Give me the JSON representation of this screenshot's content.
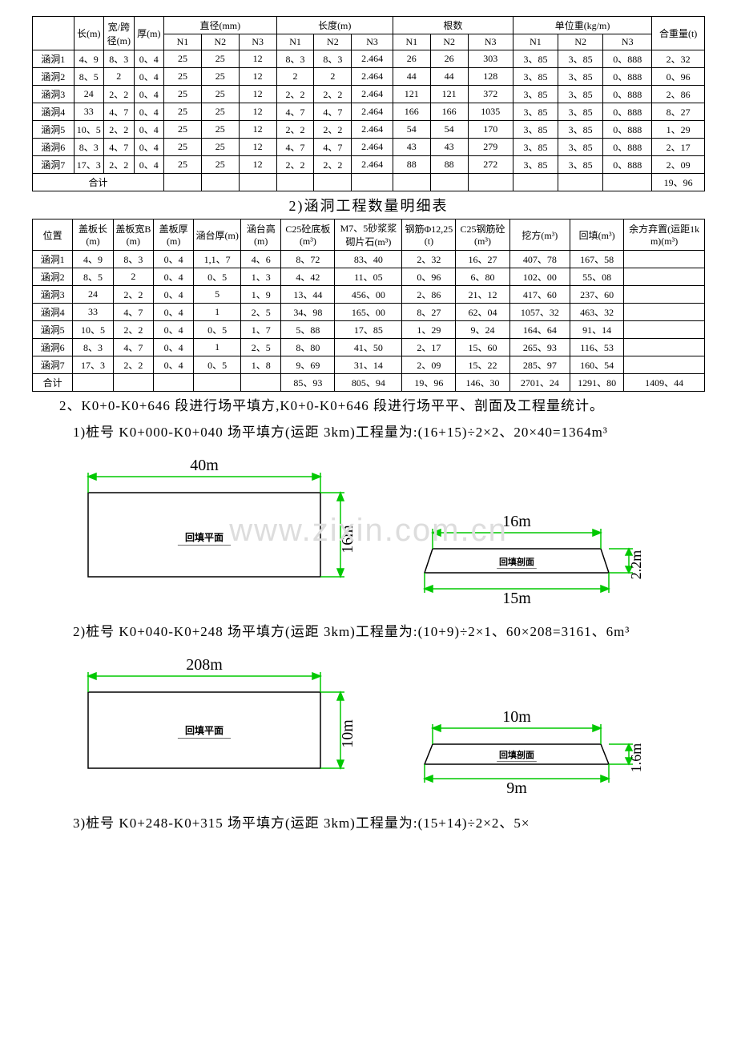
{
  "table1": {
    "headers": {
      "len": "长(m)",
      "width": "宽/跨径(m)",
      "thick": "厚(m)",
      "dia": "直径(mm)",
      "length": "长度(m)",
      "count": "根数",
      "unitw": "单位重(kg/m)",
      "total": "合重量(t)",
      "n1": "N1",
      "n2": "N2",
      "n3": "N3"
    },
    "rows": [
      {
        "name": "涵洞1",
        "l": "4、9",
        "w": "8、3",
        "t": "0、4",
        "d1": "25",
        "d2": "25",
        "d3": "12",
        "L1": "8、3",
        "L2": "8、3",
        "L3": "2.464",
        "c1": "26",
        "c2": "26",
        "c3": "303",
        "u1": "3、85",
        "u2": "3、85",
        "u3": "0、888",
        "sum": "2、32"
      },
      {
        "name": "涵洞2",
        "l": "8、5",
        "w": "2",
        "t": "0、4",
        "d1": "25",
        "d2": "25",
        "d3": "12",
        "L1": "2",
        "L2": "2",
        "L3": "2.464",
        "c1": "44",
        "c2": "44",
        "c3": "128",
        "u1": "3、85",
        "u2": "3、85",
        "u3": "0、888",
        "sum": "0、96"
      },
      {
        "name": "涵洞3",
        "l": "24",
        "w": "2、2",
        "t": "0、4",
        "d1": "25",
        "d2": "25",
        "d3": "12",
        "L1": "2、2",
        "L2": "2、2",
        "L3": "2.464",
        "c1": "121",
        "c2": "121",
        "c3": "372",
        "u1": "3、85",
        "u2": "3、85",
        "u3": "0、888",
        "sum": "2、86"
      },
      {
        "name": "涵洞4",
        "l": "33",
        "w": "4、7",
        "t": "0、4",
        "d1": "25",
        "d2": "25",
        "d3": "12",
        "L1": "4、7",
        "L2": "4、7",
        "L3": "2.464",
        "c1": "166",
        "c2": "166",
        "c3": "1035",
        "u1": "3、85",
        "u2": "3、85",
        "u3": "0、888",
        "sum": "8、27"
      },
      {
        "name": "涵洞5",
        "l": "10、5",
        "w": "2、2",
        "t": "0、4",
        "d1": "25",
        "d2": "25",
        "d3": "12",
        "L1": "2、2",
        "L2": "2、2",
        "L3": "2.464",
        "c1": "54",
        "c2": "54",
        "c3": "170",
        "u1": "3、85",
        "u2": "3、85",
        "u3": "0、888",
        "sum": "1、29"
      },
      {
        "name": "涵洞6",
        "l": "8、3",
        "w": "4、7",
        "t": "0、4",
        "d1": "25",
        "d2": "25",
        "d3": "12",
        "L1": "4、7",
        "L2": "4、7",
        "L3": "2.464",
        "c1": "43",
        "c2": "43",
        "c3": "279",
        "u1": "3、85",
        "u2": "3、85",
        "u3": "0、888",
        "sum": "2、17"
      },
      {
        "name": "涵洞7",
        "l": "17、3",
        "w": "2、2",
        "t": "0、4",
        "d1": "25",
        "d2": "25",
        "d3": "12",
        "L1": "2、2",
        "L2": "2、2",
        "L3": "2.464",
        "c1": "88",
        "c2": "88",
        "c3": "272",
        "u1": "3、85",
        "u2": "3、85",
        "u3": "0、888",
        "sum": "2、09"
      }
    ],
    "footer": {
      "label": "合计",
      "sum": "19、96"
    }
  },
  "title2": "2)涵洞工程数量明细表",
  "table2": {
    "headers": [
      "位置",
      "盖板长(m)",
      "盖板宽B(m)",
      "盖板厚(m)",
      "涵台厚(m)",
      "涵台高(m)",
      "C25砼底板(m³)",
      "M7、5砂浆浆砌片石(m³)",
      "钢筋Φ12,25(t)",
      "C25钢筋砼(m³)",
      "挖方(m³)",
      "回填(m³)",
      "余方弃置(运距1km)(m³)"
    ],
    "rows": [
      [
        "涵洞1",
        "4、9",
        "8、3",
        "0、4",
        "1,1、7",
        "4、6",
        "8、72",
        "83、40",
        "2、32",
        "16、27",
        "407、78",
        "167、58",
        ""
      ],
      [
        "涵洞2",
        "8、5",
        "2",
        "0、4",
        "0、5",
        "1、3",
        "4、42",
        "11、05",
        "0、96",
        "6、80",
        "102、00",
        "55、08",
        ""
      ],
      [
        "涵洞3",
        "24",
        "2、2",
        "0、4",
        "5",
        "1、9",
        "13、44",
        "456、00",
        "2、86",
        "21、12",
        "417、60",
        "237、60",
        ""
      ],
      [
        "涵洞4",
        "33",
        "4、7",
        "0、4",
        "1",
        "2、5",
        "34、98",
        "165、00",
        "8、27",
        "62、04",
        "1057、32",
        "463、32",
        ""
      ],
      [
        "涵洞5",
        "10、5",
        "2、2",
        "0、4",
        "0、5",
        "1、7",
        "5、88",
        "17、85",
        "1、29",
        "9、24",
        "164、64",
        "91、14",
        ""
      ],
      [
        "涵洞6",
        "8、3",
        "4、7",
        "0、4",
        "1",
        "2、5",
        "8、80",
        "41、50",
        "2、17",
        "15、60",
        "265、93",
        "116、53",
        ""
      ],
      [
        "涵洞7",
        "17、3",
        "2、2",
        "0、4",
        "0、5",
        "1、8",
        "9、69",
        "31、14",
        "2、09",
        "15、22",
        "285、97",
        "160、54",
        ""
      ],
      [
        "合计",
        "",
        "",
        "",
        "",
        "",
        "85、93",
        "805、94",
        "19、96",
        "146、30",
        "2701、24",
        "1291、80",
        "1409、44"
      ]
    ]
  },
  "paras": {
    "p1": "2、K0+0-K0+646 段进行场平填方,K0+0-K0+646 段进行场平平、剖面及工程量统计。",
    "p2": "1)桩号 K0+000-K0+040 场平填方(运距 3km)工程量为:(16+15)÷2×2、20×40=1364m³",
    "p3": "2)桩号 K0+040-K0+248 场平填方(运距 3km)工程量为:(10+9)÷2×1、60×208=3161、6m³",
    "p4": "3)桩号 K0+248-K0+315 场平填方(运距 3km)工程量为:(15+14)÷2×2、5×"
  },
  "diagrams": {
    "colors": {
      "dim": "#00c800",
      "line": "#000",
      "fill": "none",
      "text": "#000"
    },
    "d1": {
      "plan": {
        "w": "40m",
        "h": "16m",
        "label": "回填平面"
      },
      "section": {
        "top": "16m",
        "bot": "15m",
        "h": "2.2m",
        "label": "回填剖面"
      }
    },
    "d2": {
      "plan": {
        "w": "208m",
        "h": "10m",
        "label": "回填平面"
      },
      "section": {
        "top": "10m",
        "bot": "9m",
        "h": "1.6m",
        "label": "回填剖面"
      }
    }
  },
  "watermark": "www.zixin.com.cn"
}
